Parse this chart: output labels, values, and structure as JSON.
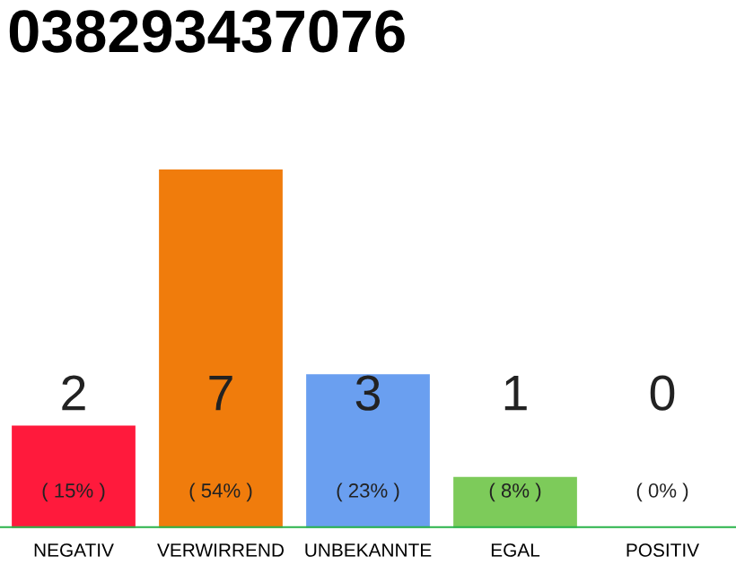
{
  "chart_data": {
    "type": "bar",
    "title": "038293437076",
    "categories": [
      "NEGATIV",
      "VERWIRREND",
      "UNBEKANNTE",
      "EGAL",
      "POSITIV"
    ],
    "values": [
      2,
      7,
      3,
      1,
      0
    ],
    "colors": [
      "#ff1a3c",
      "#f07c0c",
      "#6a9ff0",
      "#7dcb5a",
      "#2ab34a"
    ],
    "data_labels": true,
    "annotations": [
      "( 15% )",
      "( 54% )",
      "( 23% )",
      "( 8% )",
      "( 0% )"
    ],
    "grid": false,
    "legend": false
  }
}
